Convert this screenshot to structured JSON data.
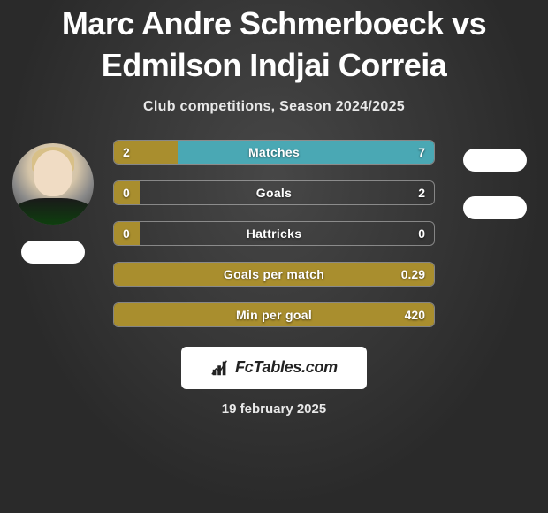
{
  "title": "Marc Andre Schmerboeck vs Edmilson Indjai Correia",
  "subtitle": "Club competitions, Season 2024/2025",
  "date": "19 february 2025",
  "logo_text": "FcTables.com",
  "colors": {
    "left_bar": "#a98e2e",
    "right_bar": "#4aa8b4",
    "background": "#3a3a3a",
    "text": "#ffffff",
    "logo_bg": "#ffffff",
    "badge_bg": "#ffffff"
  },
  "stats": [
    {
      "label": "Matches",
      "left_val": "2",
      "right_val": "7",
      "left_pct": 20,
      "right_pct": 80
    },
    {
      "label": "Goals",
      "left_val": "0",
      "right_val": "2",
      "left_pct": 8,
      "right_pct": 0
    },
    {
      "label": "Hattricks",
      "left_val": "0",
      "right_val": "0",
      "left_pct": 8,
      "right_pct": 0
    },
    {
      "label": "Goals per match",
      "left_val": "",
      "right_val": "0.29",
      "left_pct": 100,
      "right_pct": 0
    },
    {
      "label": "Min per goal",
      "left_val": "",
      "right_val": "420",
      "left_pct": 100,
      "right_pct": 0
    }
  ]
}
